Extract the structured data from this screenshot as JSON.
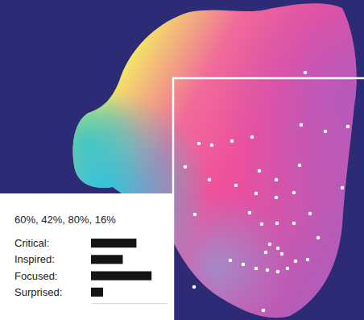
{
  "chart_data": {
    "type": "bar",
    "orientation": "horizontal",
    "title": "60%, 42%, 80%, 16%",
    "categories": [
      "Critical:",
      "Inspired:",
      "Focused:",
      "Surprised:"
    ],
    "values": [
      60,
      42,
      80,
      16
    ],
    "color": "#141414",
    "xlim": [
      0,
      100
    ],
    "tick_labels": "y",
    "grid": false
  }
}
